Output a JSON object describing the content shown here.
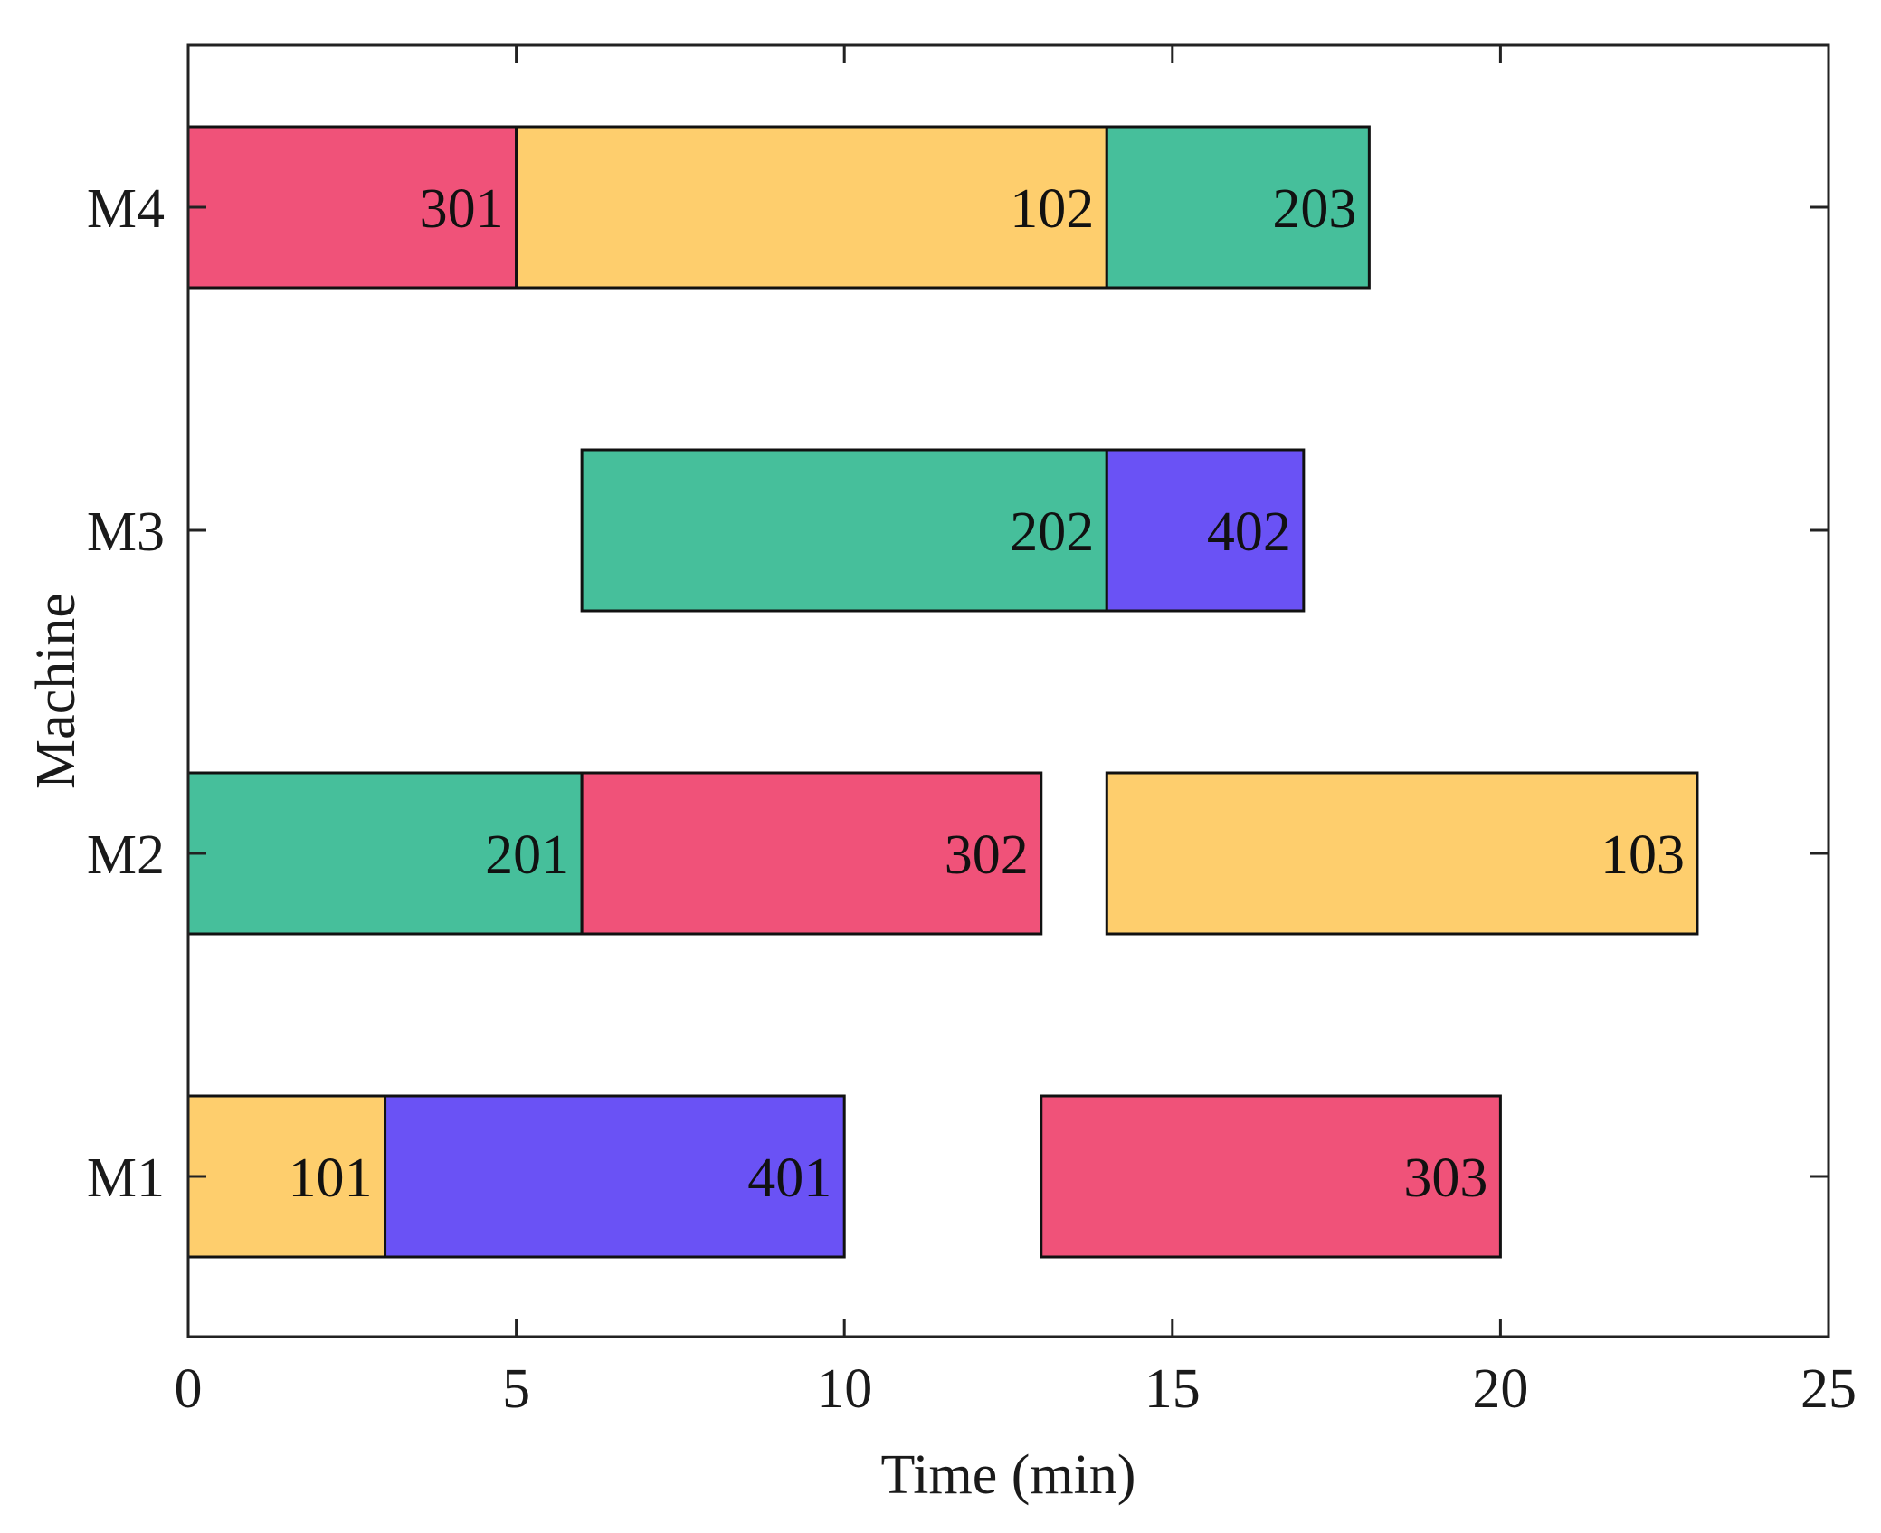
{
  "chart_data": {
    "type": "bar",
    "subtype": "gantt",
    "title": "",
    "xlabel": "Time (min)",
    "ylabel": "Machine",
    "xlim": [
      0,
      25
    ],
    "xticks": [
      "0",
      "5",
      "10",
      "15",
      "20",
      "25"
    ],
    "categories": [
      "M1",
      "M2",
      "M3",
      "M4"
    ],
    "grid": false,
    "legend": "none",
    "colors": {
      "job1": "#FECE6D",
      "job2": "#46BF9B",
      "job3": "#F05279",
      "job4": "#6A52F5",
      "border": "#111111",
      "axis": "#222222"
    },
    "tasks": [
      {
        "machine": "M1",
        "label": "101",
        "job": "job1",
        "start": 0,
        "end": 3
      },
      {
        "machine": "M1",
        "label": "401",
        "job": "job4",
        "start": 3,
        "end": 10
      },
      {
        "machine": "M1",
        "label": "303",
        "job": "job3",
        "start": 13,
        "end": 20
      },
      {
        "machine": "M2",
        "label": "201",
        "job": "job2",
        "start": 0,
        "end": 6
      },
      {
        "machine": "M2",
        "label": "302",
        "job": "job3",
        "start": 6,
        "end": 13
      },
      {
        "machine": "M2",
        "label": "103",
        "job": "job1",
        "start": 14,
        "end": 23
      },
      {
        "machine": "M3",
        "label": "202",
        "job": "job2",
        "start": 6,
        "end": 14
      },
      {
        "machine": "M3",
        "label": "402",
        "job": "job4",
        "start": 14,
        "end": 17
      },
      {
        "machine": "M4",
        "label": "301",
        "job": "job3",
        "start": 0,
        "end": 5
      },
      {
        "machine": "M4",
        "label": "102",
        "job": "job1",
        "start": 5,
        "end": 14
      },
      {
        "machine": "M4",
        "label": "203",
        "job": "job2",
        "start": 14,
        "end": 18
      }
    ]
  }
}
